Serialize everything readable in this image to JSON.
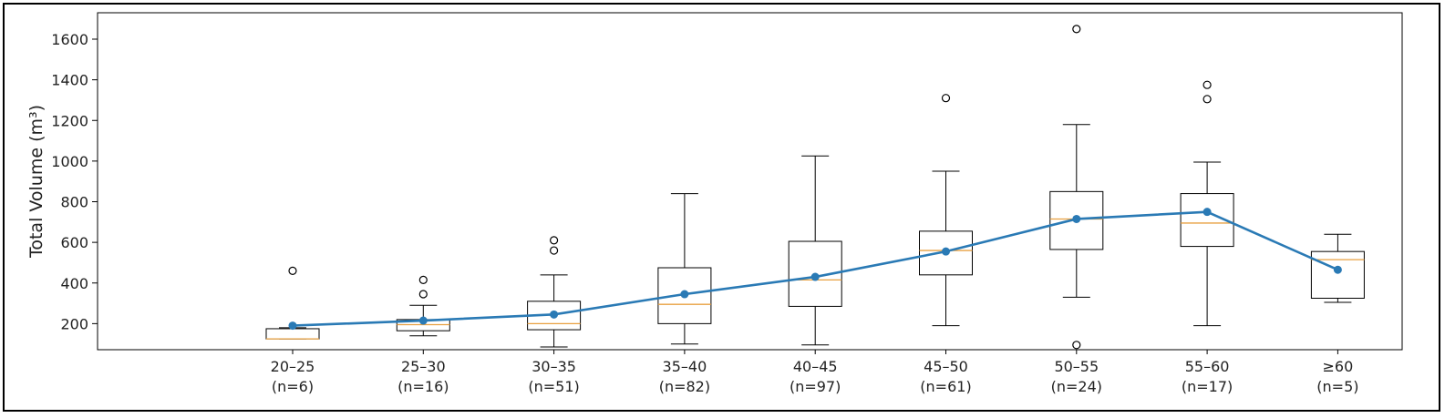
{
  "chart_data": {
    "type": "box",
    "ylabel": "Total Volume (m³)",
    "ylim": [
      0,
      1620
    ],
    "yticks": [
      200,
      400,
      600,
      800,
      1000,
      1200,
      1400,
      1600
    ],
    "categories": [
      {
        "label": "20–25",
        "n": "(n=6)"
      },
      {
        "label": "25–30",
        "n": "(n=16)"
      },
      {
        "label": "30–35",
        "n": "(n=51)"
      },
      {
        "label": "35–40",
        "n": "(n=82)"
      },
      {
        "label": "40–45",
        "n": "(n=97)"
      },
      {
        "label": "45–50",
        "n": "(n=61)"
      },
      {
        "label": "50–55",
        "n": "(n=24)"
      },
      {
        "label": "55–60",
        "n": "(n=17)"
      },
      {
        "label": "≥60",
        "n": "(n=5)"
      }
    ],
    "boxes": [
      {
        "whisker_low": 125,
        "q1": 125,
        "median": 125,
        "q3": 175,
        "whisker_high": 180,
        "outliers": [
          460
        ]
      },
      {
        "whisker_low": 140,
        "q1": 165,
        "median": 195,
        "q3": 220,
        "whisker_high": 290,
        "outliers": [
          345,
          415
        ]
      },
      {
        "whisker_low": 85,
        "q1": 170,
        "median": 200,
        "q3": 310,
        "whisker_high": 440,
        "outliers": [
          560,
          610
        ]
      },
      {
        "whisker_low": 100,
        "q1": 200,
        "median": 295,
        "q3": 475,
        "whisker_high": 840,
        "outliers": []
      },
      {
        "whisker_low": 95,
        "q1": 285,
        "median": 415,
        "q3": 605,
        "whisker_high": 1025,
        "outliers": []
      },
      {
        "whisker_low": 190,
        "q1": 440,
        "median": 560,
        "q3": 655,
        "whisker_high": 950,
        "outliers": [
          1310
        ]
      },
      {
        "whisker_low": 330,
        "q1": 565,
        "median": 715,
        "q3": 850,
        "whisker_high": 1180,
        "outliers": [
          95,
          1650
        ]
      },
      {
        "whisker_low": 190,
        "q1": 580,
        "median": 695,
        "q3": 840,
        "whisker_high": 995,
        "outliers": [
          1305,
          1375
        ]
      },
      {
        "whisker_low": 305,
        "q1": 325,
        "median": 515,
        "q3": 555,
        "whisker_high": 640,
        "outliers": []
      }
    ],
    "mean_line": {
      "values": [
        190,
        215,
        245,
        345,
        430,
        555,
        715,
        750,
        465
      ]
    },
    "colors": {
      "mean": "#2a7ab5",
      "median": "#e8a040",
      "box": "#000000"
    },
    "grid": false,
    "legend": "none"
  }
}
